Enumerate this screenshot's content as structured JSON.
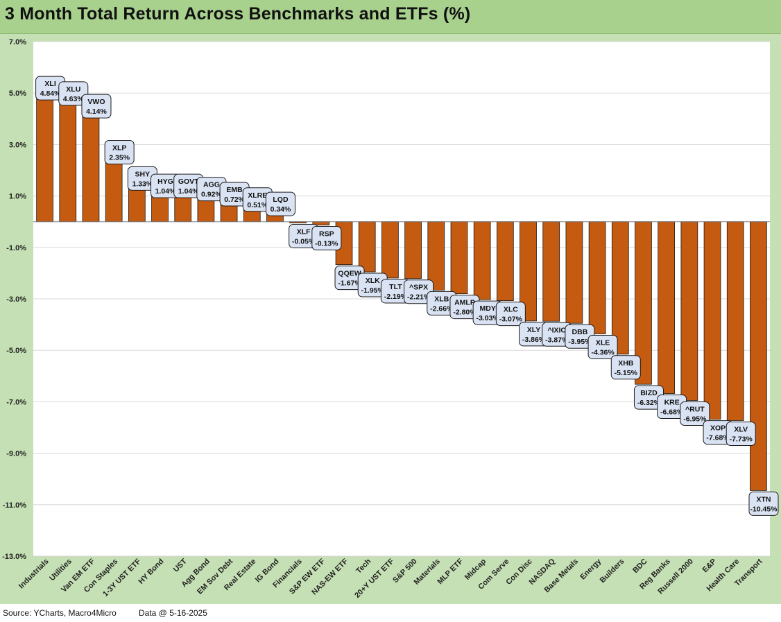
{
  "title": "3 Month Total Return Across Benchmarks and ETFs (%)",
  "footer": {
    "source": "Source: YCharts, Macro4Micro",
    "data_date": "Data @ 5-16-2025"
  },
  "colors": {
    "bar": "#c55a11",
    "background": "#c5e0b4",
    "plot": "#ffffff",
    "header": "#a9d18e",
    "label_box": "#dae3f3"
  },
  "chart_data": {
    "type": "bar",
    "title": "3 Month Total Return Across Benchmarks and ETFs (%)",
    "xlabel": "",
    "ylabel": "",
    "ylim": [
      -13,
      7
    ],
    "yticks": [
      "7.0%",
      "5.0%",
      "3.0%",
      "1.0%",
      "-1.0%",
      "-3.0%",
      "-5.0%",
      "-7.0%",
      "-9.0%",
      "-11.0%",
      "-13.0%"
    ],
    "grid": true,
    "legend": "none",
    "categories": [
      "Industrials",
      "Utilities",
      "Van EM ETF",
      "Con Staples",
      "1-3Y UST ETF",
      "HY Bond",
      "UST",
      "Agg Bond",
      "EM Sov Debt",
      "Real Estate",
      "IG Bond",
      "Financials",
      "S&P EW ETF",
      "NAS-EW ETF",
      "Tech",
      "20+Y UST ETF",
      "S&P 500",
      "Materials",
      "MLP ETF",
      "Midcap",
      "Com Serve",
      "Con Disc",
      "NASDAQ",
      "Base Metals",
      "Energy",
      "Builders",
      "BDC",
      "Reg Banks",
      "Russell 2000",
      "E&P",
      "Health Care",
      "Transport"
    ],
    "tickers": [
      "XLI",
      "XLU",
      "VWO",
      "XLP",
      "SHY",
      "HYG",
      "GOVT",
      "AGG",
      "EMB",
      "XLRE",
      "LQD",
      "XLF",
      "RSP",
      "QQEW",
      "XLK",
      "TLT",
      "^SPX",
      "XLB",
      "AMLP",
      "MDY",
      "XLC",
      "XLY",
      "^IXIC",
      "DBB",
      "XLE",
      "XHB",
      "BIZD",
      "KRE",
      "^RUT",
      "XOP",
      "XLV",
      "XTN"
    ],
    "values": [
      4.84,
      4.63,
      4.14,
      2.35,
      1.33,
      1.04,
      1.04,
      0.92,
      0.72,
      0.51,
      0.34,
      -0.05,
      -0.13,
      -1.67,
      -1.95,
      -2.19,
      -2.21,
      -2.66,
      -2.8,
      -3.03,
      -3.07,
      -3.86,
      -3.87,
      -3.95,
      -4.36,
      -5.15,
      -6.32,
      -6.68,
      -6.95,
      -7.68,
      -7.73,
      -10.45
    ],
    "value_labels": [
      "4.84%",
      "4.63%",
      "4.14%",
      "2.35%",
      "1.33%",
      "1.04%",
      "1.04%",
      "0.92%",
      "0.72%",
      "0.51%",
      "0.34%",
      "-0.05%",
      "-0.13%",
      "-1.67%",
      "-1.95%",
      "-2.19%",
      "-2.21%",
      "-2.66%",
      "-2.80%",
      "-3.03%",
      "-3.07%",
      "-3.86%",
      "-3.87%",
      "-3.95%",
      "-4.36%",
      "-5.15%",
      "-6.32%",
      "-6.68%",
      "-6.95%",
      "-7.68%",
      "-7.73%",
      "-10.45%"
    ]
  }
}
